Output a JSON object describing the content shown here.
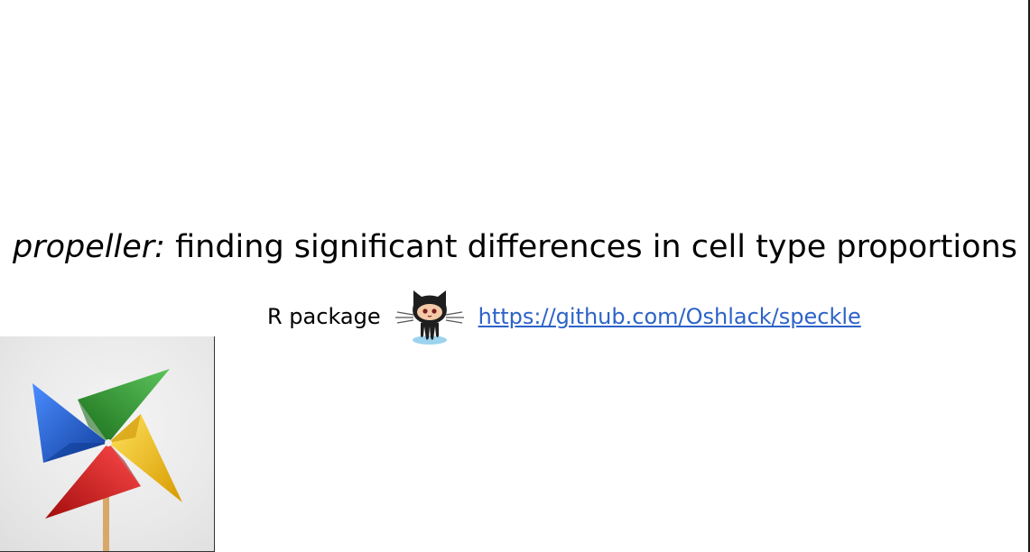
{
  "slide": {
    "title_italic": "propeller:",
    "title_rest": " finding significant differences in cell type proportions",
    "r_package_label": "R package",
    "repo_link_text": "https://github.com/Oshlack/speckle"
  },
  "colors": {
    "link": "#2d63c8",
    "text": "#000000",
    "pinwheel_blue": "#1f5fd4",
    "pinwheel_green": "#2e9a2e",
    "pinwheel_yellow": "#f2c200",
    "pinwheel_red": "#d81e1e"
  },
  "icons": {
    "github": "github-octocat-icon",
    "logo": "pinwheel-logo"
  }
}
